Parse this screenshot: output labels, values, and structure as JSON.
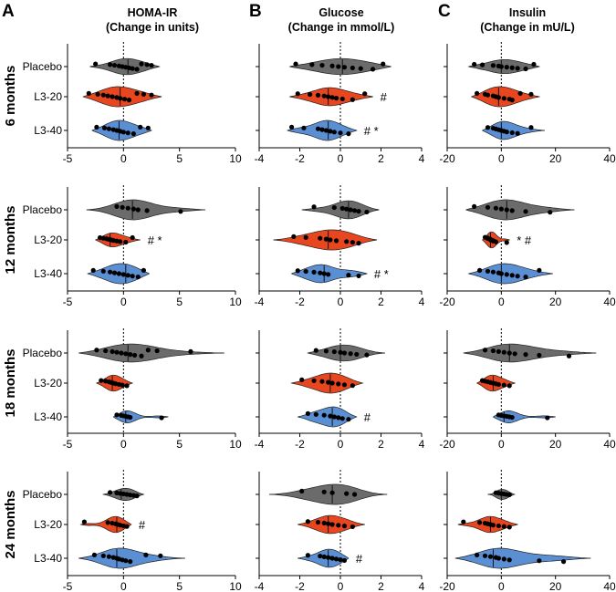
{
  "panel_letters": [
    "A",
    "B",
    "C"
  ],
  "columns": [
    {
      "title_line1": "HOMA-IR",
      "title_line2": "(Change in units)"
    },
    {
      "title_line1": "Glucose",
      "title_line2": "(Change in mmol/L)"
    },
    {
      "title_line1": "Insulin",
      "title_line2": "(Change in mU/L)"
    }
  ],
  "rows": [
    "6 months",
    "12 months",
    "18 months",
    "24 months"
  ],
  "groups": [
    "Placebo",
    "L3-20",
    "L3-40"
  ],
  "colors": {
    "Placebo": "#6b6b6b",
    "L3-20": "#e8461f",
    "L3-40": "#5b8fd4"
  },
  "chart_data": {
    "type": "violin",
    "description": "Violin plots with individual points; columns A-C, rows 6/12/18/24 months, groups Placebo, L3-20, L3-40",
    "axes": [
      {
        "column": "HOMA-IR",
        "xlim": [
          -5,
          10
        ],
        "ticks": [
          -5,
          0,
          5,
          10
        ],
        "ticklabels": [
          "-5",
          "0",
          "5",
          "10"
        ]
      },
      {
        "column": "Glucose",
        "xlim": [
          -4,
          4
        ],
        "ticks": [
          -4,
          -2,
          0,
          2,
          4
        ],
        "ticklabels": [
          "-4",
          "-2",
          "0",
          "2",
          "4"
        ]
      },
      {
        "column": "Insulin",
        "xlim": [
          -20,
          40
        ],
        "ticks": [
          -20,
          0,
          20,
          40
        ],
        "ticklabels": [
          "-20",
          "0",
          "20",
          "40"
        ]
      }
    ],
    "reference_line": 0,
    "panels": [
      [
        [
          {
            "group": "Placebo",
            "range": [
              -3,
              3.2
            ],
            "width": 0.8,
            "median": 0.4,
            "points": [
              -2.5,
              -1.2,
              -0.8,
              -0.4,
              -0.1,
              0.2,
              0.5,
              0.8,
              1.2,
              1.6,
              2.1,
              2.5
            ]
          },
          {
            "group": "L3-20",
            "range": [
              -3.6,
              3.4
            ],
            "width": 1.0,
            "median": -0.3,
            "points": [
              -3.1,
              -2.3,
              -1.8,
              -1.4,
              -1.0,
              -0.6,
              -0.3,
              0.1,
              0.5,
              1.2,
              1.8,
              2.5
            ]
          },
          {
            "group": "L3-40",
            "range": [
              -2.8,
              2.5
            ],
            "width": 1.0,
            "median": -0.4,
            "points": [
              -2.4,
              -1.7,
              -1.3,
              -0.9,
              -0.6,
              -0.3,
              0,
              0.4,
              0.9,
              1.5,
              2.2
            ]
          }
        ],
        [
          {
            "group": "Placebo",
            "range": [
              -2.5,
              2.5
            ],
            "width": 0.8,
            "median": 0.1,
            "points": [
              -2.2,
              -1.4,
              -0.9,
              -0.4,
              -0.1,
              0.2,
              0.6,
              1.0,
              1.6,
              2.1
            ]
          },
          {
            "group": "L3-20",
            "range": [
              -2.5,
              1.6
            ],
            "width": 0.9,
            "median": -0.6,
            "points": [
              -2.1,
              -1.5,
              -1.1,
              -0.8,
              -0.6,
              -0.4,
              -0.2,
              0.1,
              0.6,
              1.2
            ],
            "sig": "#"
          },
          {
            "group": "L3-40",
            "range": [
              -2.6,
              0.8
            ],
            "width": 1.0,
            "median": -0.6,
            "points": [
              -2.4,
              -1.8,
              -1.1,
              -0.9,
              -0.7,
              -0.5,
              -0.3,
              0,
              0.4
            ],
            "sig": "# *"
          }
        ],
        [
          {
            "group": "Placebo",
            "range": [
              -12,
              14
            ],
            "width": 0.7,
            "median": 0,
            "points": [
              -10,
              -7,
              -3,
              -1,
              0,
              2,
              4,
              6,
              9,
              12
            ]
          },
          {
            "group": "L3-20",
            "range": [
              -11,
              14
            ],
            "width": 1.0,
            "median": -1,
            "points": [
              -9,
              -6,
              -5,
              -3,
              -2,
              -1,
              1,
              3,
              4,
              7,
              11
            ]
          },
          {
            "group": "L3-40",
            "range": [
              -7,
              16
            ],
            "width": 0.9,
            "median": 0,
            "points": [
              -5,
              -3,
              -2,
              -1,
              0,
              1,
              2,
              4,
              6,
              11
            ]
          }
        ]
      ],
      [
        [
          {
            "group": "Placebo",
            "range": [
              -3.3,
              7.3
            ],
            "width": 1.0,
            "median": 0.8,
            "points": [
              -0.6,
              -0.1,
              0.4,
              0.9,
              1.3,
              2.1,
              5.1
            ]
          },
          {
            "group": "L3-20",
            "range": [
              -2.5,
              1.5
            ],
            "width": 0.7,
            "median": -1.2,
            "points": [
              -2.1,
              -1.8,
              -1.5,
              -1.3,
              -1.1,
              -0.9,
              -0.6,
              -0.3,
              0.2,
              0.8
            ],
            "sig": "# *"
          },
          {
            "group": "L3-40",
            "range": [
              -3.2,
              2.3
            ],
            "width": 1.0,
            "median": 0.2,
            "points": [
              -2.7,
              -1.8,
              -1.2,
              -0.8,
              -0.4,
              0,
              0.4,
              0.8,
              1.3,
              1.8
            ]
          }
        ],
        [
          {
            "group": "Placebo",
            "range": [
              -1.9,
              1.9
            ],
            "width": 0.9,
            "median": 0.4,
            "points": [
              -1.3,
              -0.3,
              0.1,
              0.3,
              0.5,
              0.7,
              0.9,
              1.3
            ]
          },
          {
            "group": "L3-20",
            "range": [
              -3.3,
              1.8
            ],
            "width": 1.0,
            "median": -0.6,
            "points": [
              -2.3,
              -1.7,
              -1.0,
              -0.7,
              -0.5,
              -0.2,
              0.3,
              0.6,
              0.9
            ]
          },
          {
            "group": "L3-40",
            "range": [
              -2.4,
              1.3
            ],
            "width": 0.9,
            "median": -0.8,
            "points": [
              -2.1,
              -1.7,
              -1.3,
              -1.0,
              -0.8,
              -0.6,
              0.4,
              0.9
            ],
            "sig": "# *"
          }
        ],
        [
          {
            "group": "Placebo",
            "range": [
              -13,
              27
            ],
            "width": 1.0,
            "median": 2,
            "points": [
              -10,
              -5,
              -2,
              0,
              2,
              4,
              9,
              18
            ]
          },
          {
            "group": "L3-20",
            "range": [
              -7,
              3
            ],
            "width": 0.8,
            "median": -4,
            "points": [
              -6,
              -5,
              -5,
              -4,
              -4,
              -3,
              -3,
              -2,
              2
            ],
            "sig": "* #"
          },
          {
            "group": "L3-40",
            "range": [
              -12,
              19
            ],
            "width": 1.0,
            "median": 0,
            "points": [
              -8,
              -5,
              -3,
              -1,
              0,
              2,
              4,
              6,
              9,
              14
            ]
          }
        ]
      ],
      [
        [
          {
            "group": "Placebo",
            "range": [
              -4,
              9
            ],
            "width": 0.9,
            "median": 0.4,
            "points": [
              -2.4,
              -1.6,
              -1.0,
              -0.6,
              -0.2,
              0.2,
              0.6,
              1.0,
              1.6,
              2.2,
              3.0,
              6.0
            ]
          },
          {
            "group": "L3-20",
            "range": [
              -2.4,
              0.8
            ],
            "width": 0.8,
            "median": -1.0,
            "points": [
              -2.0,
              -1.6,
              -1.3,
              -1.1,
              -0.9,
              -0.7,
              -0.4,
              -0.1,
              0.3
            ]
          },
          {
            "group": "L3-40",
            "range": [
              -0.9,
              4.0
            ],
            "width": 0.6,
            "median": 0.2,
            "points": [
              -0.6,
              -0.2,
              0,
              0.2,
              0.4,
              0.6,
              3.4
            ]
          }
        ],
        [
          {
            "group": "Placebo",
            "range": [
              -1.6,
              2.2
            ],
            "width": 0.8,
            "median": 0,
            "points": [
              -1.2,
              -0.7,
              -0.3,
              0,
              0.2,
              0.5,
              0.8,
              1.3
            ]
          },
          {
            "group": "L3-20",
            "range": [
              -2.4,
              1.1
            ],
            "width": 1.0,
            "median": -0.5,
            "points": [
              -1.9,
              -1.3,
              -0.9,
              -0.6,
              -0.4,
              -0.1,
              0.2,
              0.6
            ]
          },
          {
            "group": "L3-40",
            "range": [
              -2.1,
              0.8
            ],
            "width": 1.0,
            "median": -0.4,
            "points": [
              -1.6,
              -1.2,
              -0.8,
              -0.5,
              -0.3,
              -0.1,
              0.1,
              0.4
            ],
            "sig": "#"
          }
        ],
        [
          {
            "group": "Placebo",
            "range": [
              -14,
              35
            ],
            "width": 0.9,
            "median": 3,
            "points": [
              -6,
              -3,
              -1,
              1,
              3,
              5,
              9,
              14,
              25
            ]
          },
          {
            "group": "L3-20",
            "range": [
              -9,
              5
            ],
            "width": 0.8,
            "median": -3,
            "points": [
              -7,
              -6,
              -5,
              -4,
              -3,
              -2,
              -1,
              1,
              3
            ]
          },
          {
            "group": "L3-40",
            "range": [
              -3,
              20
            ],
            "width": 0.6,
            "median": 1,
            "points": [
              -1,
              0,
              1,
              2,
              3,
              4,
              17
            ]
          }
        ]
      ],
      [
        [
          {
            "group": "Placebo",
            "range": [
              -1.8,
              1.8
            ],
            "width": 0.6,
            "median": -0.2,
            "points": [
              -1.2,
              -0.6,
              -0.3,
              0,
              0.3,
              0.6,
              0.9,
              1.2
            ]
          },
          {
            "group": "L3-20",
            "range": [
              -3.8,
              0.7
            ],
            "width": 0.8,
            "median": -0.6,
            "points": [
              -3.5,
              -1.4,
              -1.0,
              -0.7,
              -0.5,
              -0.3,
              0,
              0.3
            ],
            "sig": "#"
          },
          {
            "group": "L3-40",
            "range": [
              -4.0,
              5.5
            ],
            "width": 1.0,
            "median": -0.6,
            "points": [
              -2.6,
              -1.8,
              -1.3,
              -0.9,
              -0.6,
              -0.4,
              -0.1,
              0.2,
              0.6,
              2.0,
              3.3
            ]
          }
        ],
        [
          {
            "group": "Placebo",
            "range": [
              -3.5,
              2.3
            ],
            "width": 1.0,
            "median": -0.4,
            "points": [
              -1.9,
              -0.8,
              -0.4,
              0.3,
              0.7
            ]
          },
          {
            "group": "L3-20",
            "range": [
              -2.1,
              1.2
            ],
            "width": 0.9,
            "median": -0.6,
            "points": [
              -1.6,
              -1.1,
              -0.8,
              -0.6,
              -0.4,
              -0.1,
              0.2,
              0.6
            ]
          },
          {
            "group": "L3-40",
            "range": [
              -2.1,
              0.4
            ],
            "width": 0.9,
            "median": -0.6,
            "points": [
              -1.6,
              -1.0,
              -0.8,
              -0.6,
              -0.4,
              -0.2,
              0,
              0.2
            ],
            "sig": "#"
          }
        ],
        [
          {
            "group": "Placebo",
            "range": [
              -5,
              5
            ],
            "width": 0.5,
            "median": 0,
            "points": [
              -2,
              -1,
              0,
              1,
              2,
              3
            ]
          },
          {
            "group": "L3-20",
            "range": [
              -16,
              6
            ],
            "width": 0.8,
            "median": -4,
            "points": [
              -14,
              -8,
              -6,
              -5,
              -4,
              -3,
              -1,
              1,
              3
            ]
          },
          {
            "group": "L3-40",
            "range": [
              -17,
              33
            ],
            "width": 1.0,
            "median": -3,
            "points": [
              -9,
              -6,
              -4,
              -2,
              -1,
              1,
              3,
              14,
              23
            ]
          }
        ]
      ]
    ]
  }
}
